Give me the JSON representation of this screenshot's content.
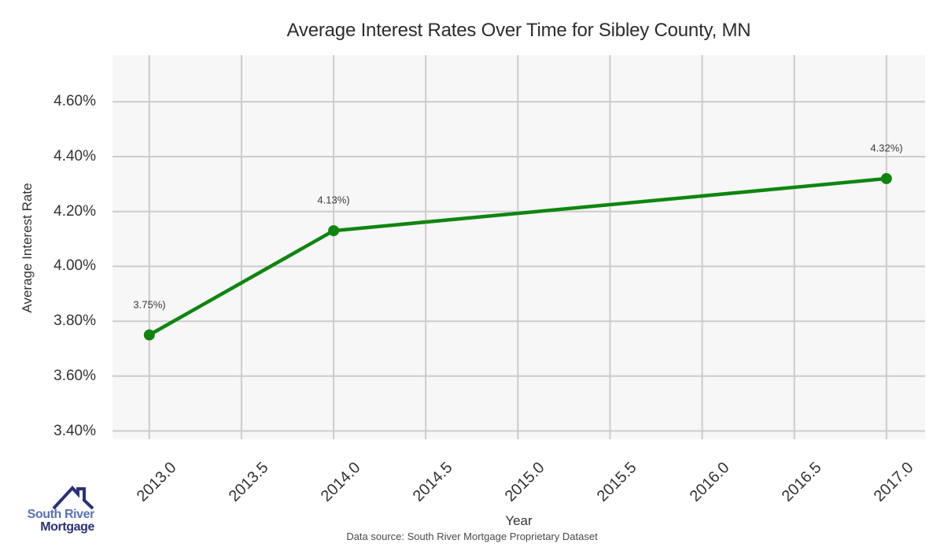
{
  "title": "Average Interest Rates Over Time for Sibley County, MN",
  "chart_data": {
    "type": "line",
    "title": "Average Interest Rates Over Time for Sibley County, MN",
    "xlabel": "Year",
    "ylabel": "Average Interest Rate",
    "x": [
      2013.0,
      2014.0,
      2017.0
    ],
    "y": [
      3.75,
      4.13,
      4.32
    ],
    "point_labels": [
      "3.75%)",
      "4.13%)",
      "4.32%)"
    ],
    "xlim": [
      2012.8,
      2017.21
    ],
    "ylim": [
      3.37,
      4.77
    ],
    "xticks": [
      2013.0,
      2013.5,
      2014.0,
      2014.5,
      2015.0,
      2015.5,
      2016.0,
      2016.5,
      2017.0
    ],
    "xtick_labels": [
      "2013.0",
      "2013.5",
      "2014.0",
      "2014.5",
      "2015.0",
      "2015.5",
      "2016.0",
      "2016.5",
      "2017.0"
    ],
    "yticks": [
      3.4,
      3.6,
      3.8,
      4.0,
      4.2,
      4.4,
      4.6
    ],
    "ytick_labels": [
      "3.40%",
      "3.60%",
      "3.80%",
      "4.00%",
      "4.20%",
      "4.40%",
      "4.60%"
    ],
    "grid": true,
    "legend": "none",
    "line_color": "#0e860e",
    "marker_color": "#0e860e",
    "plot_background": "#f7f7f7",
    "grid_color": "#cccccc"
  },
  "logo": {
    "line1": "South River",
    "line2": "Mortgage",
    "line1_color": "#5a72b4",
    "line2_color": "#2b3178",
    "roof_color": "#2b3178"
  },
  "footer": {
    "source": "Data source: South River Mortgage Proprietary Dataset"
  }
}
